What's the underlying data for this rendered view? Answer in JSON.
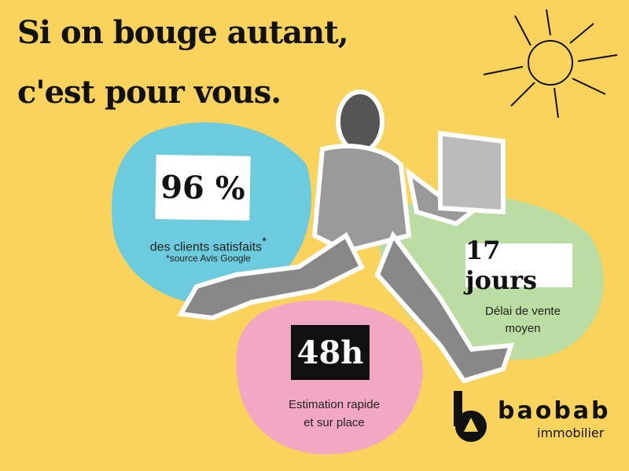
{
  "headline": {
    "line1": "Si on bouge autant,",
    "line2": "c'est pour vous."
  },
  "stats": [
    {
      "value": "96 %",
      "label": "des clients satisfaits",
      "note": "*source Avis Google",
      "color": "#6ccbdc"
    },
    {
      "value": "17 jours",
      "label_line1": "Délai de vente",
      "label_line2": "moyen",
      "color": "#bbdca2"
    },
    {
      "value": "48h",
      "label_line1": "Estimation rapide",
      "label_line2": "et sur place",
      "color": "#f2a8c3"
    }
  ],
  "brand": {
    "name": "baobab",
    "sub": "immobilier"
  },
  "colors": {
    "background": "#f9d35b"
  }
}
